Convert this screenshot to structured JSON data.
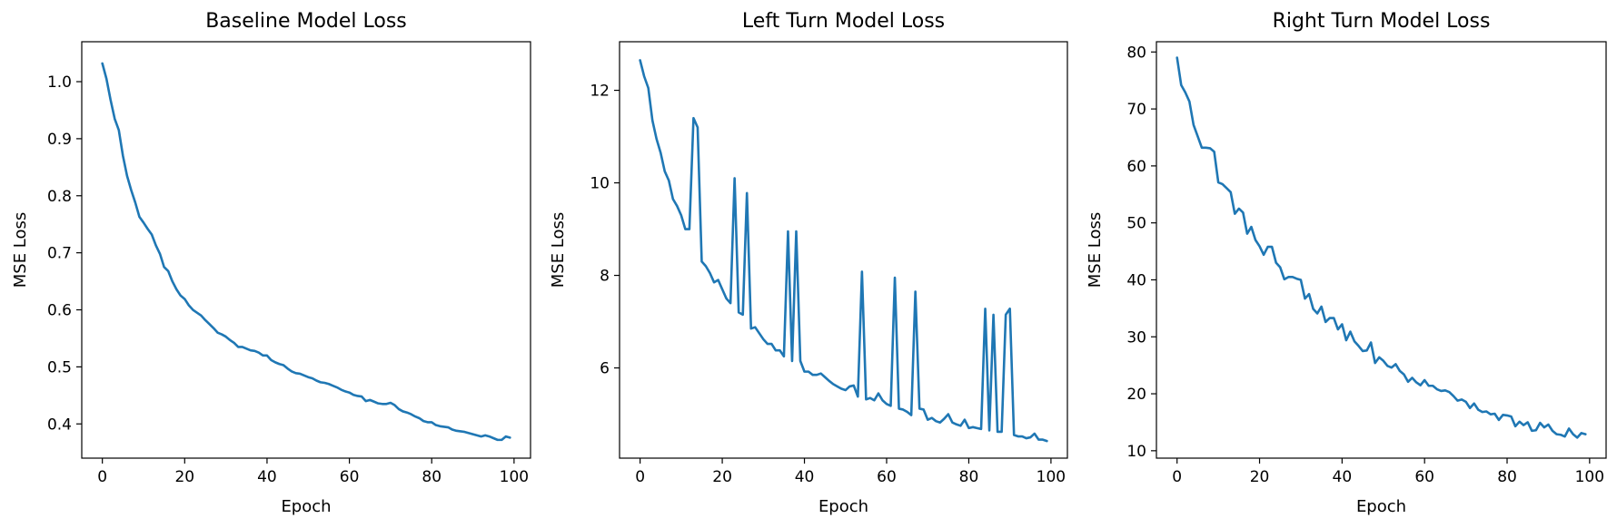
{
  "chart_data": [
    {
      "type": "line",
      "title": "Baseline Model Loss",
      "xlabel": "Epoch",
      "ylabel": "MSE Loss",
      "xlim": [
        -5,
        104
      ],
      "ylim": [
        0.34,
        1.07
      ],
      "xticks": [
        0,
        20,
        40,
        60,
        80,
        100
      ],
      "yticks": [
        0.4,
        0.5,
        0.6,
        0.7,
        0.8,
        0.9,
        1.0
      ],
      "yticks_labels": [
        "0.4",
        "0.5",
        "0.6",
        "0.7",
        "0.8",
        "0.9",
        "1.0"
      ],
      "grid": false,
      "color": "#1f77b4",
      "series": [
        {
          "x": [
            0,
            1,
            2,
            3,
            4,
            5,
            6,
            7,
            8,
            9,
            10,
            11,
            12,
            13,
            14,
            15,
            16,
            17,
            18,
            19,
            20,
            21,
            22,
            23,
            24,
            25,
            26,
            27,
            28,
            29,
            30,
            31,
            32,
            33,
            34,
            35,
            36,
            37,
            38,
            39,
            40,
            41,
            42,
            43,
            44,
            45,
            46,
            47,
            48,
            49,
            50,
            51,
            52,
            53,
            54,
            55,
            56,
            57,
            58,
            59,
            60,
            61,
            62,
            63,
            64,
            65,
            66,
            67,
            68,
            69,
            70,
            71,
            72,
            73,
            74,
            75,
            76,
            77,
            78,
            79,
            80,
            81,
            82,
            83,
            84,
            85,
            86,
            87,
            88,
            89,
            90,
            91,
            92,
            93,
            94,
            95,
            96,
            97,
            98,
            99
          ],
          "values": [
            1.032,
            1.005,
            0.968,
            0.935,
            0.915,
            0.87,
            0.835,
            0.81,
            0.788,
            0.763,
            0.753,
            0.742,
            0.732,
            0.713,
            0.698,
            0.675,
            0.668,
            0.65,
            0.636,
            0.625,
            0.619,
            0.608,
            0.6,
            0.595,
            0.59,
            0.582,
            0.575,
            0.568,
            0.56,
            0.557,
            0.553,
            0.547,
            0.542,
            0.535,
            0.535,
            0.532,
            0.529,
            0.528,
            0.525,
            0.52,
            0.52,
            0.512,
            0.508,
            0.505,
            0.503,
            0.497,
            0.492,
            0.489,
            0.488,
            0.485,
            0.482,
            0.48,
            0.476,
            0.473,
            0.472,
            0.47,
            0.467,
            0.464,
            0.46,
            0.457,
            0.455,
            0.451,
            0.449,
            0.448,
            0.44,
            0.442,
            0.439,
            0.436,
            0.435,
            0.435,
            0.437,
            0.433,
            0.426,
            0.422,
            0.42,
            0.417,
            0.413,
            0.41,
            0.405,
            0.403,
            0.403,
            0.398,
            0.396,
            0.395,
            0.394,
            0.39,
            0.388,
            0.387,
            0.386,
            0.384,
            0.382,
            0.38,
            0.378,
            0.38,
            0.378,
            0.375,
            0.372,
            0.372,
            0.378,
            0.376
          ]
        }
      ]
    },
    {
      "type": "line",
      "title": "Left Turn Model Loss",
      "xlabel": "Epoch",
      "ylabel": "MSE Loss",
      "xlim": [
        -5,
        104
      ],
      "ylim": [
        4.05,
        13.05
      ],
      "xticks": [
        0,
        20,
        40,
        60,
        80,
        100
      ],
      "yticks": [
        6,
        8,
        10,
        12
      ],
      "yticks_labels": [
        "6",
        "8",
        "10",
        "12"
      ],
      "grid": false,
      "color": "#1f77b4",
      "series": [
        {
          "x": [
            0,
            1,
            2,
            3,
            4,
            5,
            6,
            7,
            8,
            9,
            10,
            11,
            12,
            13,
            14,
            15,
            16,
            17,
            18,
            19,
            20,
            21,
            22,
            23,
            24,
            25,
            26,
            27,
            28,
            29,
            30,
            31,
            32,
            33,
            34,
            35,
            36,
            37,
            38,
            39,
            40,
            41,
            42,
            43,
            44,
            45,
            46,
            47,
            48,
            49,
            50,
            51,
            52,
            53,
            54,
            55,
            56,
            57,
            58,
            59,
            60,
            61,
            62,
            63,
            64,
            65,
            66,
            67,
            68,
            69,
            70,
            71,
            72,
            73,
            74,
            75,
            76,
            77,
            78,
            79,
            80,
            81,
            82,
            83,
            84,
            85,
            86,
            87,
            88,
            89,
            90,
            91,
            92,
            93,
            94,
            95,
            96,
            97,
            98,
            99
          ],
          "values": [
            12.65,
            12.3,
            12.05,
            11.35,
            10.95,
            10.65,
            10.25,
            10.05,
            9.65,
            9.5,
            9.3,
            9.0,
            9.0,
            11.4,
            11.2,
            8.3,
            8.2,
            8.05,
            7.85,
            7.9,
            7.7,
            7.5,
            7.4,
            10.1,
            7.2,
            7.15,
            9.78,
            6.85,
            6.88,
            6.75,
            6.62,
            6.52,
            6.52,
            6.38,
            6.38,
            6.25,
            8.95,
            6.15,
            8.95,
            6.15,
            5.92,
            5.92,
            5.85,
            5.85,
            5.88,
            5.8,
            5.72,
            5.65,
            5.6,
            5.55,
            5.52,
            5.6,
            5.62,
            5.38,
            8.08,
            5.32,
            5.35,
            5.3,
            5.45,
            5.3,
            5.22,
            5.18,
            7.95,
            5.12,
            5.1,
            5.05,
            4.98,
            7.65,
            5.12,
            5.1,
            4.88,
            4.92,
            4.85,
            4.82,
            4.9,
            5.0,
            4.82,
            4.78,
            4.75,
            4.88,
            4.7,
            4.72,
            4.7,
            4.68,
            7.28,
            4.65,
            7.15,
            4.62,
            4.62,
            7.15,
            7.28,
            4.55,
            4.52,
            4.52,
            4.48,
            4.5,
            4.58,
            4.45,
            4.45,
            4.42
          ]
        }
      ]
    },
    {
      "type": "line",
      "title": "Right Turn Model Loss",
      "xlabel": "Epoch",
      "ylabel": "MSE Loss",
      "xlim": [
        -5,
        104
      ],
      "ylim": [
        8.7,
        81.8
      ],
      "xticks": [
        0,
        20,
        40,
        60,
        80,
        100
      ],
      "yticks": [
        10,
        20,
        30,
        40,
        50,
        60,
        70,
        80
      ],
      "yticks_labels": [
        "10",
        "20",
        "30",
        "40",
        "50",
        "60",
        "70",
        "80"
      ],
      "grid": false,
      "color": "#1f77b4",
      "series": [
        {
          "x": [
            0,
            1,
            2,
            3,
            4,
            5,
            6,
            7,
            8,
            9,
            10,
            11,
            12,
            13,
            14,
            15,
            16,
            17,
            18,
            19,
            20,
            21,
            22,
            23,
            24,
            25,
            26,
            27,
            28,
            29,
            30,
            31,
            32,
            33,
            34,
            35,
            36,
            37,
            38,
            39,
            40,
            41,
            42,
            43,
            44,
            45,
            46,
            47,
            48,
            49,
            50,
            51,
            52,
            53,
            54,
            55,
            56,
            57,
            58,
            59,
            60,
            61,
            62,
            63,
            64,
            65,
            66,
            67,
            68,
            69,
            70,
            71,
            72,
            73,
            74,
            75,
            76,
            77,
            78,
            79,
            80,
            81,
            82,
            83,
            84,
            85,
            86,
            87,
            88,
            89,
            90,
            91,
            92,
            93,
            94,
            95,
            96,
            97,
            98,
            99
          ],
          "values": [
            79.0,
            74.2,
            72.9,
            71.3,
            67.2,
            65.2,
            63.2,
            63.2,
            63.1,
            62.5,
            57.1,
            56.8,
            56.1,
            55.4,
            51.6,
            52.5,
            51.8,
            48.1,
            49.3,
            47.0,
            45.9,
            44.4,
            45.8,
            45.8,
            43.0,
            42.2,
            40.1,
            40.5,
            40.5,
            40.2,
            40.0,
            36.7,
            37.5,
            34.9,
            34.1,
            35.3,
            32.6,
            33.3,
            33.3,
            31.3,
            32.2,
            29.4,
            30.9,
            29.2,
            28.4,
            27.5,
            27.6,
            29.0,
            25.4,
            26.4,
            25.8,
            24.9,
            24.6,
            25.2,
            24.0,
            23.4,
            22.1,
            22.8,
            22.0,
            21.5,
            22.4,
            21.4,
            21.4,
            20.8,
            20.5,
            20.6,
            20.3,
            19.6,
            18.8,
            19.0,
            18.6,
            17.5,
            18.3,
            17.2,
            16.8,
            16.9,
            16.4,
            16.5,
            15.4,
            16.3,
            16.2,
            16.0,
            14.3,
            15.1,
            14.5,
            15.0,
            13.5,
            13.6,
            14.9,
            14.1,
            14.6,
            13.5,
            12.9,
            12.8,
            12.5,
            13.9,
            12.9,
            12.3,
            13.1,
            12.9
          ]
        }
      ]
    }
  ]
}
